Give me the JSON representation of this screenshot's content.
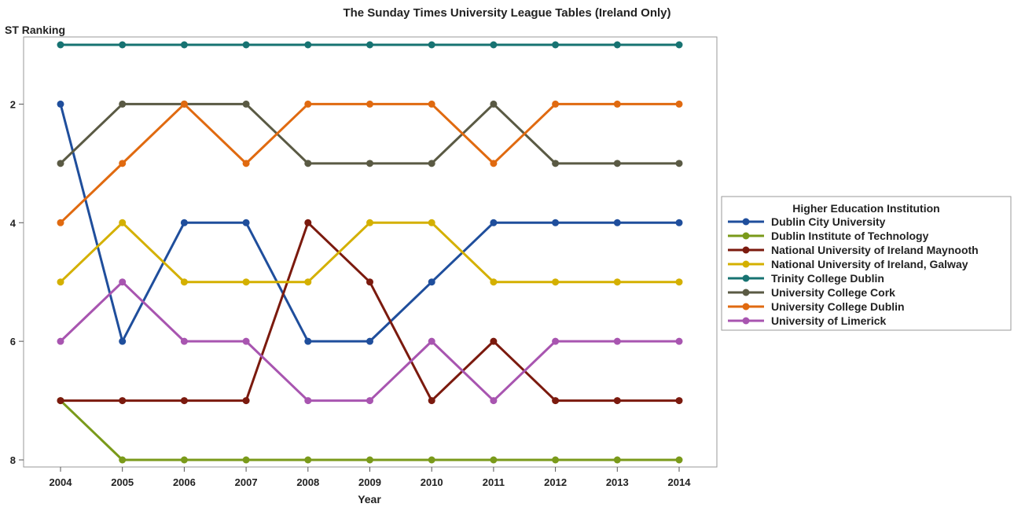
{
  "chart_data": {
    "type": "line",
    "title": "The Sunday Times University League Tables (Ireland Only)",
    "xlabel": "Year",
    "ylabel": "ST Ranking",
    "x": [
      2004,
      2005,
      2006,
      2007,
      2008,
      2009,
      2010,
      2011,
      2012,
      2013,
      2014
    ],
    "ylim": [
      1,
      8
    ],
    "y_reversed": true,
    "yticks": [
      2,
      4,
      6,
      8
    ],
    "grid": false,
    "legend_title": "Higher Education Institution",
    "legend_position": "right",
    "series": [
      {
        "name": "Dublin City University",
        "color": "#1f4e9c",
        "values": [
          2,
          6,
          4,
          4,
          6,
          6,
          5,
          4,
          4,
          4,
          4
        ]
      },
      {
        "name": "Dublin Institute of Technology",
        "color": "#7a9a1a",
        "values": [
          7,
          8,
          8,
          8,
          8,
          8,
          8,
          8,
          8,
          8,
          8
        ]
      },
      {
        "name": "National University of Ireland Maynooth",
        "color": "#7b1a0e",
        "values": [
          7,
          7,
          7,
          7,
          4,
          5,
          7,
          6,
          7,
          7,
          7
        ]
      },
      {
        "name": "National University of Ireland, Galway",
        "color": "#d4b000",
        "values": [
          5,
          4,
          5,
          5,
          5,
          4,
          4,
          5,
          5,
          5,
          5
        ]
      },
      {
        "name": "Trinity College Dublin",
        "color": "#177372",
        "values": [
          1,
          1,
          1,
          1,
          1,
          1,
          1,
          1,
          1,
          1,
          1
        ]
      },
      {
        "name": "University College Cork",
        "color": "#5a5a44",
        "values": [
          3,
          2,
          2,
          2,
          3,
          3,
          3,
          2,
          3,
          3,
          3
        ]
      },
      {
        "name": "University College Dublin",
        "color": "#e06a10",
        "values": [
          4,
          3,
          2,
          3,
          2,
          2,
          2,
          3,
          2,
          2,
          2
        ]
      },
      {
        "name": "University of Limerick",
        "color": "#a855b0",
        "values": [
          6,
          5,
          6,
          6,
          7,
          7,
          6,
          7,
          6,
          6,
          6
        ]
      }
    ]
  }
}
